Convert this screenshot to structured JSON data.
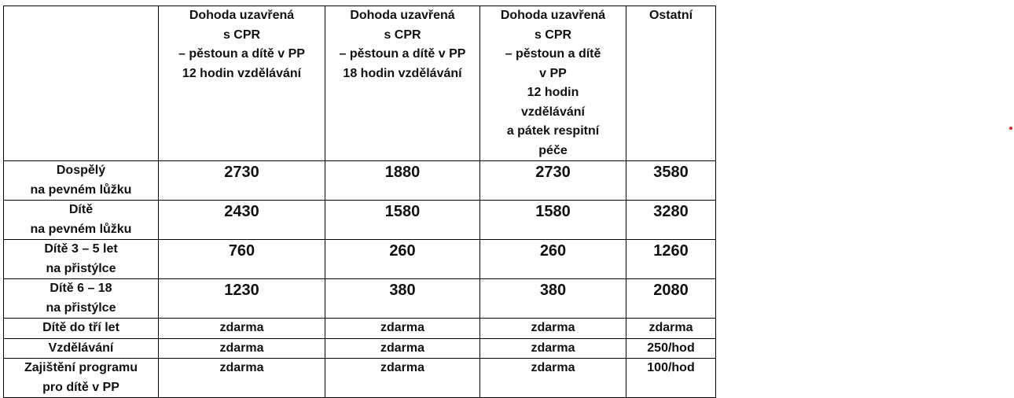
{
  "table": {
    "headers": [
      "",
      "Dohoda uzavřená\ns CPR\n– pěstoun a dítě v PP\n12 hodin vzdělávání",
      "Dohoda uzavřená\ns CPR\n– pěstoun a dítě v PP\n18 hodin vzdělávání",
      "Dohoda uzavřená\ns CPR\n– pěstoun a dítě\nv PP\n12 hodin\nvzdělávání\na pátek respitní\npéče",
      "Ostatní"
    ],
    "rows": [
      {
        "label": "Dospělý\nna pevném lůžku",
        "values": [
          "2730",
          "1880",
          "2730",
          "3580"
        ]
      },
      {
        "label": "Dítě\nna pevném lůžku",
        "values": [
          "2430",
          "1580",
          "1580",
          "3280"
        ]
      },
      {
        "label": "Dítě 3 – 5 let\nna přistýlce",
        "values": [
          "760",
          "260",
          "260",
          "1260"
        ]
      },
      {
        "label": "Dítě 6 – 18\nna přistýlce",
        "values": [
          "1230",
          "380",
          "380",
          "2080"
        ]
      },
      {
        "label": "Dítě do tří let",
        "values": [
          "zdarma",
          "zdarma",
          "zdarma",
          "zdarma"
        ]
      },
      {
        "label": "Vzdělávání",
        "values": [
          "zdarma",
          "zdarma",
          "zdarma",
          "250/hod"
        ]
      },
      {
        "label": "Zajištění programu\npro dítě v PP",
        "values": [
          "zdarma",
          "zdarma",
          "zdarma",
          "100/hod"
        ]
      }
    ]
  },
  "colors": {
    "marker": "#e02020",
    "border": "#000000"
  }
}
